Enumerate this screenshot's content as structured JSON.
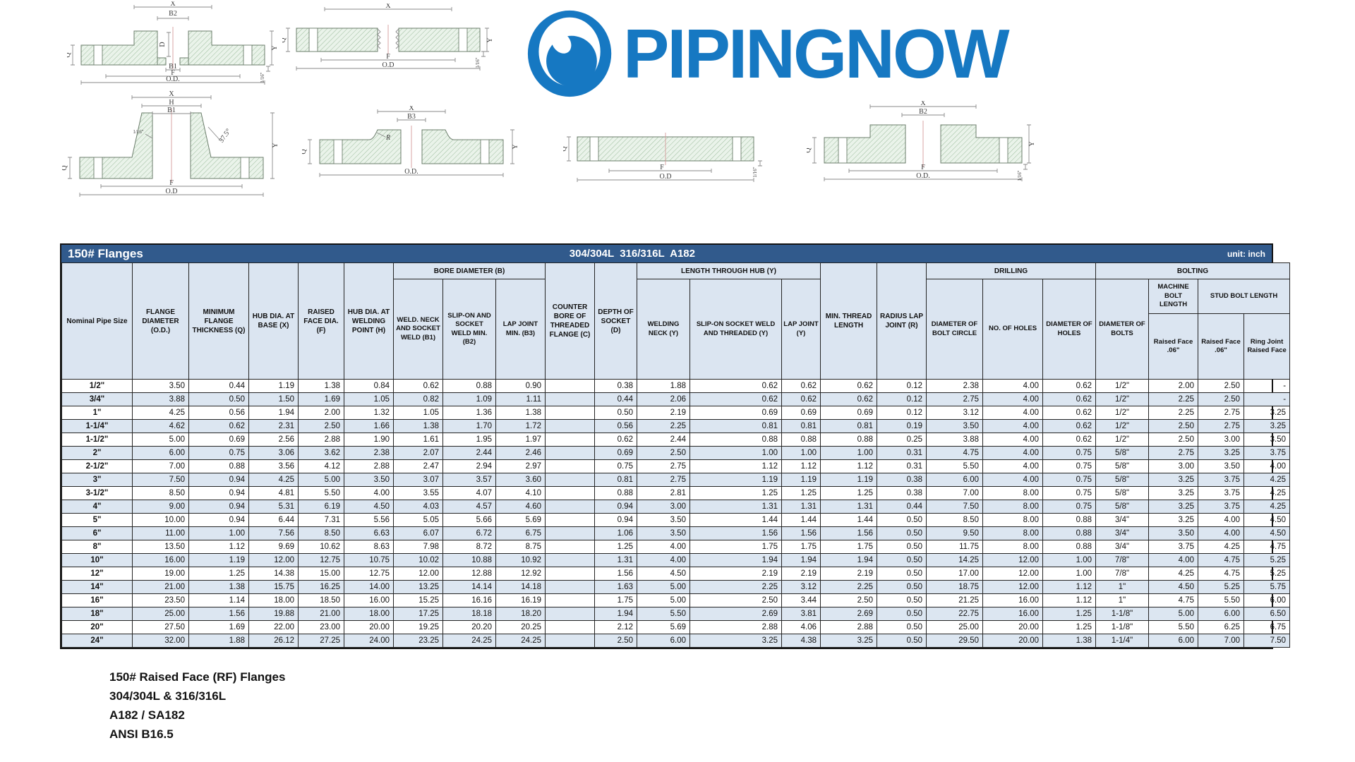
{
  "logo": {
    "text": "PIPINGNOW",
    "color": "#1678c2"
  },
  "drawings": {
    "socket_weld": {
      "labels": {
        "x": "X",
        "b2": "B2",
        "d": "D",
        "b1": "B1",
        "f": "F",
        "od": "O.D.",
        "q": "Q",
        "y": "Y",
        "gap": "1/16\""
      }
    },
    "threaded": {
      "labels": {
        "x": "X",
        "f": "F",
        "od": "O.D",
        "q": "Q",
        "y": "Y",
        "gap": "1/16\""
      }
    },
    "welding_neck": {
      "labels": {
        "x": "X",
        "h": "H",
        "b1": "B1",
        "gap": "1/16\"",
        "angle": "37.5°",
        "q": "Q",
        "f": "F",
        "od": "O.D",
        "y": "Y"
      }
    },
    "lap_joint": {
      "labels": {
        "x": "X",
        "b3": "B3",
        "q": "Q",
        "r": "R",
        "y": "Y",
        "od": "O.D."
      }
    },
    "blind": {
      "labels": {
        "q": "Q",
        "f": "F",
        "od": "O.D",
        "gap": "1/16\""
      }
    },
    "slip_on": {
      "labels": {
        "x": "X",
        "b2": "B2",
        "q": "Q",
        "f": "F",
        "od": "O.D.",
        "y": "Y",
        "gap": "1/16\""
      }
    }
  },
  "table": {
    "title": "150# Flanges",
    "material": "304/304L  316/316L  A182",
    "unit": "unit: inch",
    "title_bar_color": "#315a8c",
    "stripe_color": "#dce6f1",
    "header": {
      "nominal": "Nominal Pipe Size",
      "flange_od": "FLANGE DIAMETER (O.D.)",
      "min_thickness": "MINIMUM FLANGE THICKNESS (Q)",
      "hub_base": "HUB DIA. AT BASE (X)",
      "raised_face": "RAISED FACE DIA. (F)",
      "hub_welding": "HUB DIA. AT WELDING POINT (H)",
      "bore_group": "BORE DIAMETER (B)",
      "b1": "WELD. NECK AND SOCKET WELD (B1)",
      "b2": "SLIP-ON AND SOCKET WELD MIN. (B2)",
      "b3": "LAP JOINT MIN. (B3)",
      "counter_bore": "COUNTER BORE OF THREADED FLANGE (C)",
      "socket_depth": "DEPTH OF SOCKET (D)",
      "length_group": "LENGTH THROUGH HUB (Y)",
      "welding_neck": "WELDING NECK (Y)",
      "slip_on": "SLIP-ON SOCKET WELD AND THREADED (Y)",
      "lap_joint": "LAP JOINT (Y)",
      "min_thread": "MIN. THREAD LENGTH",
      "radius": "RADIUS LAP JOINT (R)",
      "drilling_group": "DRILLING",
      "bolt_circle": "DIAMETER OF BOLT CIRCLE",
      "num_holes": "NO. OF HOLES",
      "dia_holes": "DIAMETER OF HOLES",
      "bolting_group": "BOLTING",
      "dia_bolts": "DIAMETER OF BOLTS",
      "machine_bolt": "MACHINE BOLT LENGTH",
      "stud_bolt": "STUD BOLT LENGTH",
      "rf06_machine": "Raised Face .06\"",
      "rf06_stud": "Raised Face .06\"",
      "ring_joint": "Ring Joint Raised Face"
    },
    "rows": [
      [
        "1/2\"",
        "3.50",
        "0.44",
        "1.19",
        "1.38",
        "0.84",
        "0.62",
        "0.88",
        "0.90",
        "",
        "0.38",
        "1.88",
        "0.62",
        "0.62",
        "0.62",
        "0.12",
        "2.38",
        "4.00",
        "0.62",
        "1/2\"",
        "2.00",
        "2.50",
        "-"
      ],
      [
        "3/4\"",
        "3.88",
        "0.50",
        "1.50",
        "1.69",
        "1.05",
        "0.82",
        "1.09",
        "1.11",
        "",
        "0.44",
        "2.06",
        "0.62",
        "0.62",
        "0.62",
        "0.12",
        "2.75",
        "4.00",
        "0.62",
        "1/2\"",
        "2.25",
        "2.50",
        "-"
      ],
      [
        "1\"",
        "4.25",
        "0.56",
        "1.94",
        "2.00",
        "1.32",
        "1.05",
        "1.36",
        "1.38",
        "",
        "0.50",
        "2.19",
        "0.69",
        "0.69",
        "0.69",
        "0.12",
        "3.12",
        "4.00",
        "0.62",
        "1/2\"",
        "2.25",
        "2.75",
        "3.25"
      ],
      [
        "1-1/4\"",
        "4.62",
        "0.62",
        "2.31",
        "2.50",
        "1.66",
        "1.38",
        "1.70",
        "1.72",
        "",
        "0.56",
        "2.25",
        "0.81",
        "0.81",
        "0.81",
        "0.19",
        "3.50",
        "4.00",
        "0.62",
        "1/2\"",
        "2.50",
        "2.75",
        "3.25"
      ],
      [
        "1-1/2\"",
        "5.00",
        "0.69",
        "2.56",
        "2.88",
        "1.90",
        "1.61",
        "1.95",
        "1.97",
        "",
        "0.62",
        "2.44",
        "0.88",
        "0.88",
        "0.88",
        "0.25",
        "3.88",
        "4.00",
        "0.62",
        "1/2\"",
        "2.50",
        "3.00",
        "3.50"
      ],
      [
        "2\"",
        "6.00",
        "0.75",
        "3.06",
        "3.62",
        "2.38",
        "2.07",
        "2.44",
        "2.46",
        "",
        "0.69",
        "2.50",
        "1.00",
        "1.00",
        "1.00",
        "0.31",
        "4.75",
        "4.00",
        "0.75",
        "5/8\"",
        "2.75",
        "3.25",
        "3.75"
      ],
      [
        "2-1/2\"",
        "7.00",
        "0.88",
        "3.56",
        "4.12",
        "2.88",
        "2.47",
        "2.94",
        "2.97",
        "",
        "0.75",
        "2.75",
        "1.12",
        "1.12",
        "1.12",
        "0.31",
        "5.50",
        "4.00",
        "0.75",
        "5/8\"",
        "3.00",
        "3.50",
        "4.00"
      ],
      [
        "3\"",
        "7.50",
        "0.94",
        "4.25",
        "5.00",
        "3.50",
        "3.07",
        "3.57",
        "3.60",
        "",
        "0.81",
        "2.75",
        "1.19",
        "1.19",
        "1.19",
        "0.38",
        "6.00",
        "4.00",
        "0.75",
        "5/8\"",
        "3.25",
        "3.75",
        "4.25"
      ],
      [
        "3-1/2\"",
        "8.50",
        "0.94",
        "4.81",
        "5.50",
        "4.00",
        "3.55",
        "4.07",
        "4.10",
        "",
        "0.88",
        "2.81",
        "1.25",
        "1.25",
        "1.25",
        "0.38",
        "7.00",
        "8.00",
        "0.75",
        "5/8\"",
        "3.25",
        "3.75",
        "4.25"
      ],
      [
        "4\"",
        "9.00",
        "0.94",
        "5.31",
        "6.19",
        "4.50",
        "4.03",
        "4.57",
        "4.60",
        "",
        "0.94",
        "3.00",
        "1.31",
        "1.31",
        "1.31",
        "0.44",
        "7.50",
        "8.00",
        "0.75",
        "5/8\"",
        "3.25",
        "3.75",
        "4.25"
      ],
      [
        "5\"",
        "10.00",
        "0.94",
        "6.44",
        "7.31",
        "5.56",
        "5.05",
        "5.66",
        "5.69",
        "",
        "0.94",
        "3.50",
        "1.44",
        "1.44",
        "1.44",
        "0.50",
        "8.50",
        "8.00",
        "0.88",
        "3/4\"",
        "3.25",
        "4.00",
        "4.50"
      ],
      [
        "6\"",
        "11.00",
        "1.00",
        "7.56",
        "8.50",
        "6.63",
        "6.07",
        "6.72",
        "6.75",
        "",
        "1.06",
        "3.50",
        "1.56",
        "1.56",
        "1.56",
        "0.50",
        "9.50",
        "8.00",
        "0.88",
        "3/4\"",
        "3.50",
        "4.00",
        "4.50"
      ],
      [
        "8\"",
        "13.50",
        "1.12",
        "9.69",
        "10.62",
        "8.63",
        "7.98",
        "8.72",
        "8.75",
        "",
        "1.25",
        "4.00",
        "1.75",
        "1.75",
        "1.75",
        "0.50",
        "11.75",
        "8.00",
        "0.88",
        "3/4\"",
        "3.75",
        "4.25",
        "4.75"
      ],
      [
        "10\"",
        "16.00",
        "1.19",
        "12.00",
        "12.75",
        "10.75",
        "10.02",
        "10.88",
        "10.92",
        "",
        "1.31",
        "4.00",
        "1.94",
        "1.94",
        "1.94",
        "0.50",
        "14.25",
        "12.00",
        "1.00",
        "7/8\"",
        "4.00",
        "4.75",
        "5.25"
      ],
      [
        "12\"",
        "19.00",
        "1.25",
        "14.38",
        "15.00",
        "12.75",
        "12.00",
        "12.88",
        "12.92",
        "",
        "1.56",
        "4.50",
        "2.19",
        "2.19",
        "2.19",
        "0.50",
        "17.00",
        "12.00",
        "1.00",
        "7/8\"",
        "4.25",
        "4.75",
        "5.25"
      ],
      [
        "14\"",
        "21.00",
        "1.38",
        "15.75",
        "16.25",
        "14.00",
        "13.25",
        "14.14",
        "14.18",
        "",
        "1.63",
        "5.00",
        "2.25",
        "3.12",
        "2.25",
        "0.50",
        "18.75",
        "12.00",
        "1.12",
        "1\"",
        "4.50",
        "5.25",
        "5.75"
      ],
      [
        "16\"",
        "23.50",
        "1.14",
        "18.00",
        "18.50",
        "16.00",
        "15.25",
        "16.16",
        "16.19",
        "",
        "1.75",
        "5.00",
        "2.50",
        "3.44",
        "2.50",
        "0.50",
        "21.25",
        "16.00",
        "1.12",
        "1\"",
        "4.75",
        "5.50",
        "6.00"
      ],
      [
        "18\"",
        "25.00",
        "1.56",
        "19.88",
        "21.00",
        "18.00",
        "17.25",
        "18.18",
        "18.20",
        "",
        "1.94",
        "5.50",
        "2.69",
        "3.81",
        "2.69",
        "0.50",
        "22.75",
        "16.00",
        "1.25",
        "1-1/8\"",
        "5.00",
        "6.00",
        "6.50"
      ],
      [
        "20\"",
        "27.50",
        "1.69",
        "22.00",
        "23.00",
        "20.00",
        "19.25",
        "20.20",
        "20.25",
        "",
        "2.12",
        "5.69",
        "2.88",
        "4.06",
        "2.88",
        "0.50",
        "25.00",
        "20.00",
        "1.25",
        "1-1/8\"",
        "5.50",
        "6.25",
        "6.75"
      ],
      [
        "24\"",
        "32.00",
        "1.88",
        "26.12",
        "27.25",
        "24.00",
        "23.25",
        "24.25",
        "24.25",
        "",
        "2.50",
        "6.00",
        "3.25",
        "4.38",
        "3.25",
        "0.50",
        "29.50",
        "20.00",
        "1.38",
        "1-1/4\"",
        "6.00",
        "7.00",
        "7.50"
      ]
    ]
  },
  "footer": {
    "lines": [
      "150# Raised Face (RF) Flanges",
      "304/304L & 316/316L",
      "A182 / SA182",
      "ANSI B16.5"
    ]
  }
}
